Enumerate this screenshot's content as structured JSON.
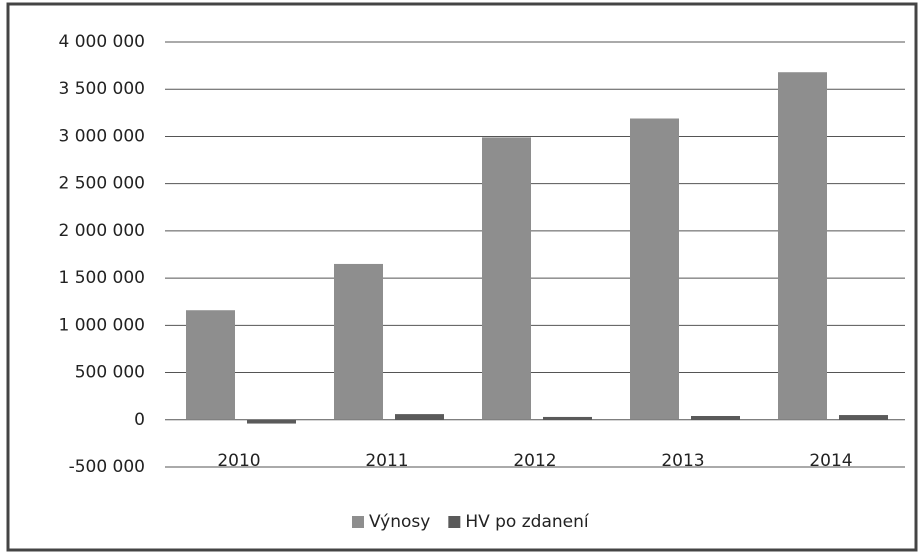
{
  "chart_data": {
    "type": "bar",
    "categories": [
      "2010",
      "2011",
      "2012",
      "2013",
      "2014"
    ],
    "series": [
      {
        "name": "Výnosy",
        "color": "#8e8e8e",
        "values": [
          1160000,
          1650000,
          2990000,
          3190000,
          3680000
        ]
      },
      {
        "name": "HV po zdanení",
        "color": "#5a5a5a",
        "values": [
          -40000,
          60000,
          30000,
          40000,
          50000
        ]
      }
    ],
    "ylim": [
      -500000,
      4000000
    ],
    "yticks": [
      {
        "value": -500000,
        "label": "-500 000"
      },
      0,
      {
        "value": 500000,
        "label": "500 000"
      },
      {
        "value": 1000000,
        "label": "1 000 000"
      },
      {
        "value": 1500000,
        "label": "1 500 000"
      },
      {
        "value": 2000000,
        "label": "2 000 000"
      },
      {
        "value": 2500000,
        "label": "2 500 000"
      },
      {
        "value": 3000000,
        "label": "3 000 000"
      },
      {
        "value": 3500000,
        "label": "3 500 000"
      },
      {
        "value": 4000000,
        "label": "4 000 000"
      }
    ],
    "grid": true,
    "legend": "bottom"
  }
}
